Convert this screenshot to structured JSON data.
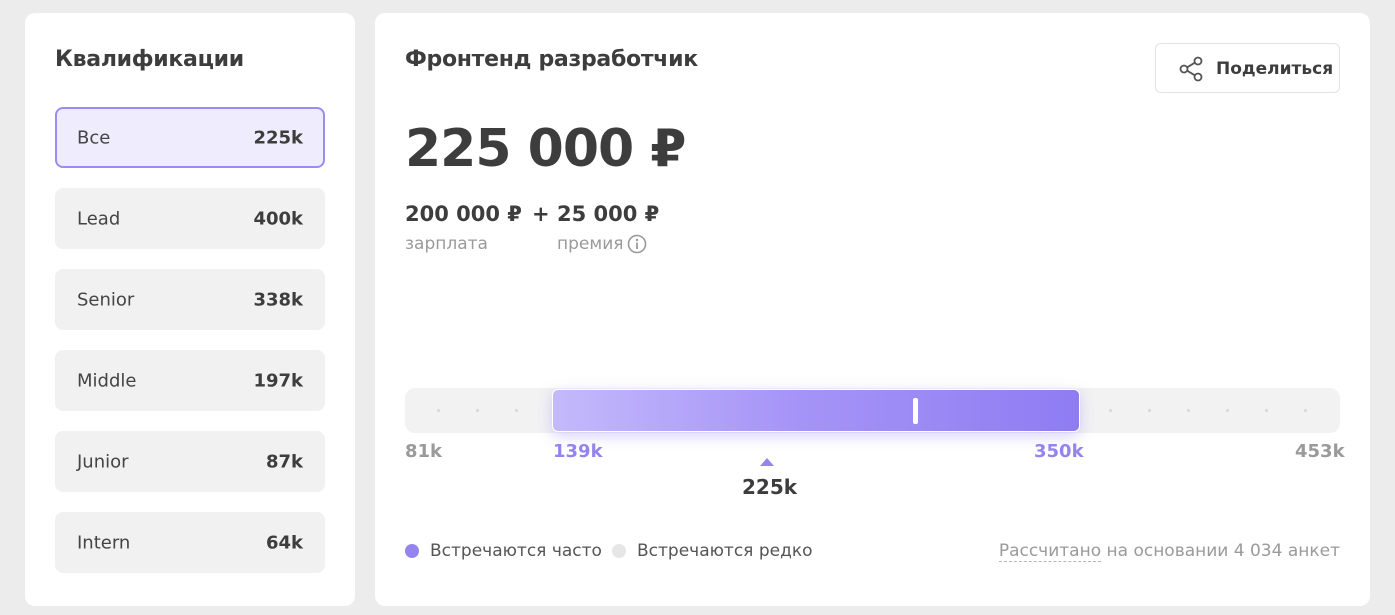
{
  "qualifications": {
    "title": "Квалификации",
    "items": [
      {
        "name": "Все",
        "value": "225k",
        "active": true
      },
      {
        "name": "Lead",
        "value": "400k"
      },
      {
        "name": "Senior",
        "value": "338k"
      },
      {
        "name": "Middle",
        "value": "197k"
      },
      {
        "name": "Junior",
        "value": "87k"
      },
      {
        "name": "Intern",
        "value": "64k"
      }
    ]
  },
  "job": {
    "title": "Фронтенд разработчик",
    "share_label": "Поделиться",
    "total": "225 000 ₽",
    "salary_amount": "200 000 ₽",
    "plus": "+",
    "bonus_amount": "25 000 ₽",
    "salary_label": "зарплата",
    "bonus_label": "премия"
  },
  "range": {
    "min": "81k",
    "low": "139k",
    "high": "350k",
    "max": "453k",
    "median": "225k"
  },
  "legend": {
    "frequent": "Встречаются часто",
    "rare": "Встречаются редко",
    "frequent_color": "#9583ee",
    "rare_color": "#e6e6e6"
  },
  "footnote": {
    "link": "Рассчитано",
    "rest": " на основании 4 034 анкет"
  },
  "icons": [
    "share-icon",
    "info-icon"
  ]
}
